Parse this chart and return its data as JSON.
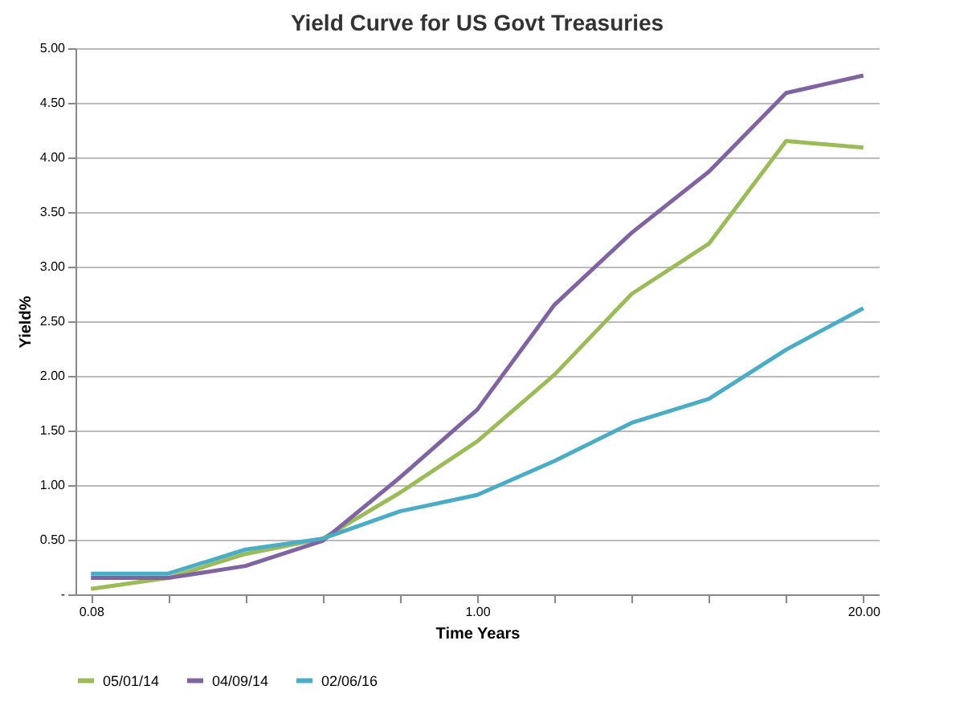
{
  "chart_data": {
    "type": "line",
    "title": "Yield Curve for US Govt  Treasuries",
    "xlabel": "Time Years",
    "ylabel": "Yield%",
    "categories": [
      "0.08",
      null,
      null,
      null,
      null,
      "1.00",
      null,
      null,
      null,
      null,
      "20.00"
    ],
    "series": [
      {
        "name": "05/01/14",
        "color": "#9bbb59",
        "values": [
          0.05,
          0.15,
          0.37,
          0.51,
          0.93,
          1.4,
          2.01,
          2.75,
          3.21,
          4.15,
          4.09
        ]
      },
      {
        "name": "04/09/14",
        "color": "#8064a2",
        "values": [
          0.15,
          0.15,
          0.26,
          0.49,
          1.07,
          1.69,
          2.65,
          3.31,
          3.87,
          4.59,
          4.75
        ]
      },
      {
        "name": "02/06/16",
        "color": "#4bacc6",
        "values": [
          0.19,
          0.19,
          0.41,
          0.51,
          0.76,
          0.91,
          1.22,
          1.57,
          1.79,
          2.24,
          2.62
        ]
      }
    ],
    "ylim": [
      0,
      5
    ],
    "yticks": [
      {
        "value": 0,
        "label": "-"
      },
      {
        "value": 0.5,
        "label": "0.50"
      },
      {
        "value": 1,
        "label": "1.00"
      },
      {
        "value": 1.5,
        "label": "1.50"
      },
      {
        "value": 2,
        "label": "2.00"
      },
      {
        "value": 2.5,
        "label": "2.50"
      },
      {
        "value": 3,
        "label": "3.00"
      },
      {
        "value": 3.5,
        "label": "3.50"
      },
      {
        "value": 4,
        "label": "4.00"
      },
      {
        "value": 4.5,
        "label": "4.50"
      },
      {
        "value": 5,
        "label": "5.00"
      }
    ],
    "grid": "y",
    "legend": "bottom",
    "marker": "none",
    "line_style": "solid"
  }
}
